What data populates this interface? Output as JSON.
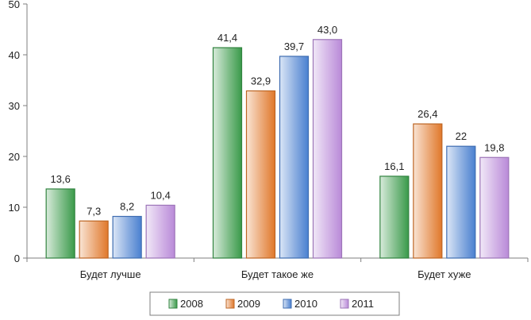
{
  "chart_data": {
    "type": "bar",
    "categories": [
      "Будет лучше",
      "Будет такое же",
      "Будет хуже"
    ],
    "series": [
      {
        "name": "2008",
        "values": [
          13.6,
          41.4,
          16.1
        ],
        "labels": [
          "13,6",
          "41,4",
          "16,1"
        ],
        "color": "#3a9a4a"
      },
      {
        "name": "2009",
        "values": [
          7.3,
          32.9,
          26.4
        ],
        "labels": [
          "7,3",
          "32,9",
          "26,4"
        ],
        "color": "#e0782a"
      },
      {
        "name": "2010",
        "values": [
          8.2,
          39.7,
          22
        ],
        "labels": [
          "8,2",
          "39,7",
          "22"
        ],
        "color": "#4a80d0"
      },
      {
        "name": "2011",
        "values": [
          10.4,
          43.0,
          19.8
        ],
        "labels": [
          "10,4",
          "43,0",
          "19,8"
        ],
        "color": "#b98ad8"
      }
    ],
    "ylim": [
      0,
      50
    ],
    "yticks": [
      0,
      10,
      20,
      30,
      40,
      50
    ],
    "ytick_labels": [
      "0",
      "10",
      "20",
      "30",
      "40",
      "50"
    ],
    "grid": false,
    "legend_position": "bottom-center",
    "title": "",
    "xlabel": "",
    "ylabel": ""
  }
}
